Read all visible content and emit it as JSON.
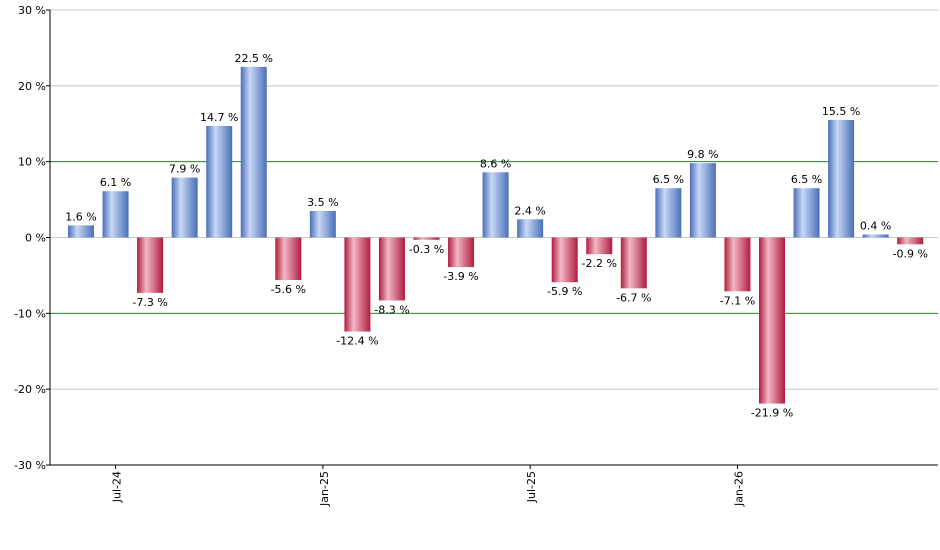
{
  "chart_data": {
    "type": "bar",
    "ylim": [
      -30,
      30
    ],
    "y_ticks": [
      30,
      20,
      10,
      0,
      -10,
      -20,
      -30
    ],
    "y_tick_labels": [
      "30 %",
      "20 %",
      "10 %",
      "0 %",
      "-10 %",
      "-20 %",
      "-30 %"
    ],
    "x_tick_labels": [
      "Jul-24",
      "Jan-25",
      "Jul-25",
      "Jan-26"
    ],
    "x_tick_positions": [
      1,
      7,
      13,
      19
    ],
    "reference_lines": [
      10,
      -10
    ],
    "grid": true,
    "values": [
      1.6,
      6.1,
      -7.3,
      7.9,
      14.7,
      22.5,
      -5.6,
      3.5,
      -12.4,
      -8.3,
      -0.3,
      -3.9,
      8.6,
      2.4,
      -5.9,
      -2.2,
      -6.7,
      6.5,
      9.8,
      -7.1,
      -21.9,
      6.5,
      15.5,
      0.4,
      -0.9
    ],
    "data_labels": [
      "1.6 %",
      "6.1 %",
      "-7.3 %",
      "7.9 %",
      "14.7 %",
      "22.5 %",
      "-5.6 %",
      "3.5 %",
      "-12.4 %",
      "-8.3 %",
      "-0.3 %",
      "-3.9 %",
      "8.6 %",
      "2.4 %",
      "-5.9 %",
      "-2.2 %",
      "-6.7 %",
      "6.5 %",
      "9.8 %",
      "-7.1 %",
      "-21.9 %",
      "6.5 %",
      "15.5 %",
      "0.4 %",
      "-0.9 %"
    ],
    "colors": {
      "positive_light": "#c8d8f6",
      "positive_dark": "#4a6fb8",
      "negative_light": "#f2b8c6",
      "negative_dark": "#b01c3e",
      "grid": "#c8c8c8",
      "reference_line": "#2e8b2e",
      "axis": "#000000"
    }
  }
}
